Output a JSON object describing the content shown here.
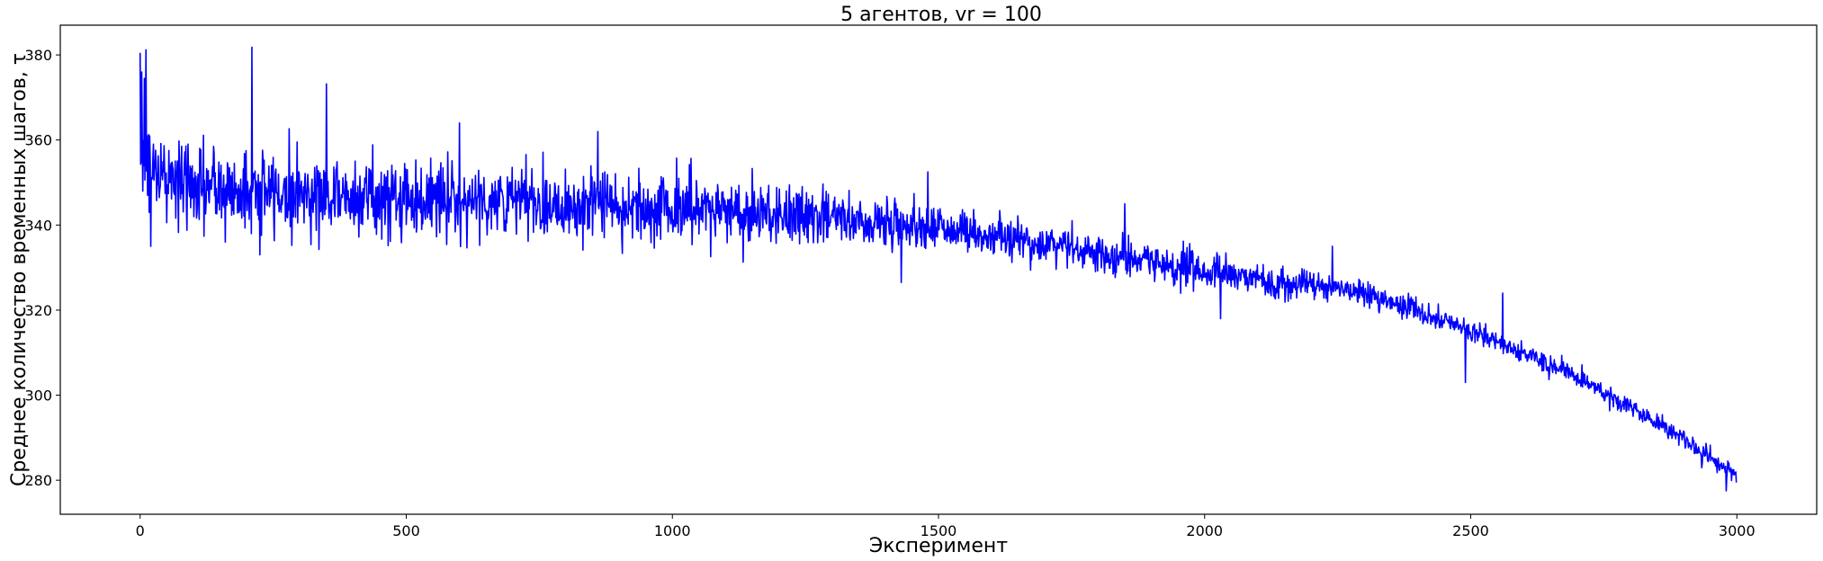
{
  "chart_data": {
    "type": "line",
    "title": "5 агентов, vr = 100",
    "xlabel": "Эксперимент",
    "ylabel": "Среднее количество временных шагов, τ",
    "xlim": [
      -150,
      3150
    ],
    "ylim": [
      272,
      387
    ],
    "xticks": [
      0,
      500,
      1000,
      1500,
      2000,
      2500,
      3000
    ],
    "yticks": [
      280,
      300,
      320,
      340,
      360,
      380
    ],
    "grid": false,
    "legend": "none",
    "series": [
      {
        "color": "#0000ff",
        "trend": [
          [
            0,
            360
          ],
          [
            30,
            352
          ],
          [
            100,
            349
          ],
          [
            200,
            348
          ],
          [
            300,
            347.5
          ],
          [
            400,
            347
          ],
          [
            500,
            346
          ],
          [
            600,
            346
          ],
          [
            700,
            345.5
          ],
          [
            800,
            345
          ],
          [
            900,
            344.5
          ],
          [
            1000,
            344
          ],
          [
            1100,
            343.5
          ],
          [
            1200,
            342.5
          ],
          [
            1300,
            341.5
          ],
          [
            1400,
            340.5
          ],
          [
            1500,
            339.5
          ],
          [
            1600,
            337.5
          ],
          [
            1700,
            335.5
          ],
          [
            1800,
            333.5
          ],
          [
            1900,
            331
          ],
          [
            2000,
            329
          ],
          [
            2100,
            327
          ],
          [
            2200,
            326
          ],
          [
            2300,
            324
          ],
          [
            2400,
            320
          ],
          [
            2500,
            315
          ],
          [
            2600,
            310
          ],
          [
            2700,
            304
          ],
          [
            2800,
            297
          ],
          [
            2900,
            290
          ],
          [
            3000,
            281
          ]
        ],
        "noise": [
          [
            0,
            9
          ],
          [
            50,
            8
          ],
          [
            300,
            7.5
          ],
          [
            1000,
            6.5
          ],
          [
            1300,
            5
          ],
          [
            1500,
            4
          ],
          [
            2000,
            3.5
          ],
          [
            2200,
            2.5
          ],
          [
            2500,
            2
          ],
          [
            3000,
            1.6
          ]
        ],
        "spikes": [
          [
            0,
            380.5
          ],
          [
            3,
            376
          ],
          [
            8,
            374.5
          ],
          [
            11,
            381.2
          ],
          [
            14,
            347
          ],
          [
            17,
            343
          ],
          [
            20,
            335
          ],
          [
            210,
            381.8
          ],
          [
            350,
            373.2
          ],
          [
            225,
            333
          ],
          [
            160,
            336
          ],
          [
            600,
            364
          ],
          [
            860,
            362
          ],
          [
            1430,
            326.5
          ],
          [
            1480,
            352.5
          ],
          [
            1850,
            345
          ],
          [
            2030,
            318
          ],
          [
            2240,
            335
          ],
          [
            2490,
            303
          ],
          [
            2560,
            324
          ],
          [
            2980,
            277.5
          ]
        ],
        "n_points": 3000
      }
    ]
  }
}
